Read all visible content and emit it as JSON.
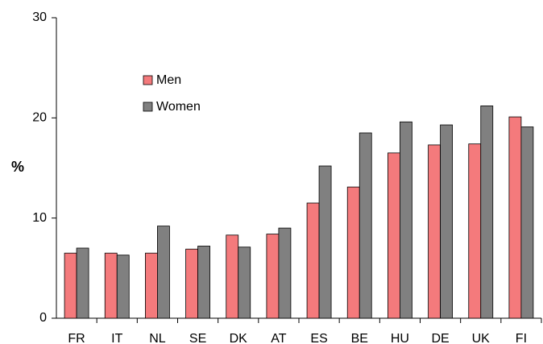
{
  "chart_data": {
    "type": "bar",
    "y_label": "%",
    "categories": [
      "FR",
      "IT",
      "NL",
      "SE",
      "DK",
      "AT",
      "ES",
      "BE",
      "HU",
      "DE",
      "UK",
      "FI"
    ],
    "series": [
      {
        "name": "Men",
        "color": "#f47a7c",
        "values": [
          6.5,
          6.5,
          6.5,
          6.9,
          8.3,
          8.4,
          11.5,
          13.1,
          16.5,
          17.3,
          17.4,
          20.1
        ]
      },
      {
        "name": "Women",
        "color": "#808080",
        "values": [
          7.0,
          6.3,
          9.2,
          7.2,
          7.1,
          9.0,
          15.2,
          18.5,
          19.6,
          19.3,
          21.2,
          19.1
        ]
      }
    ],
    "ylim": [
      0,
      30
    ],
    "yticks": [
      0,
      10,
      20,
      30
    ],
    "grid": false,
    "legend": "upper-left"
  }
}
